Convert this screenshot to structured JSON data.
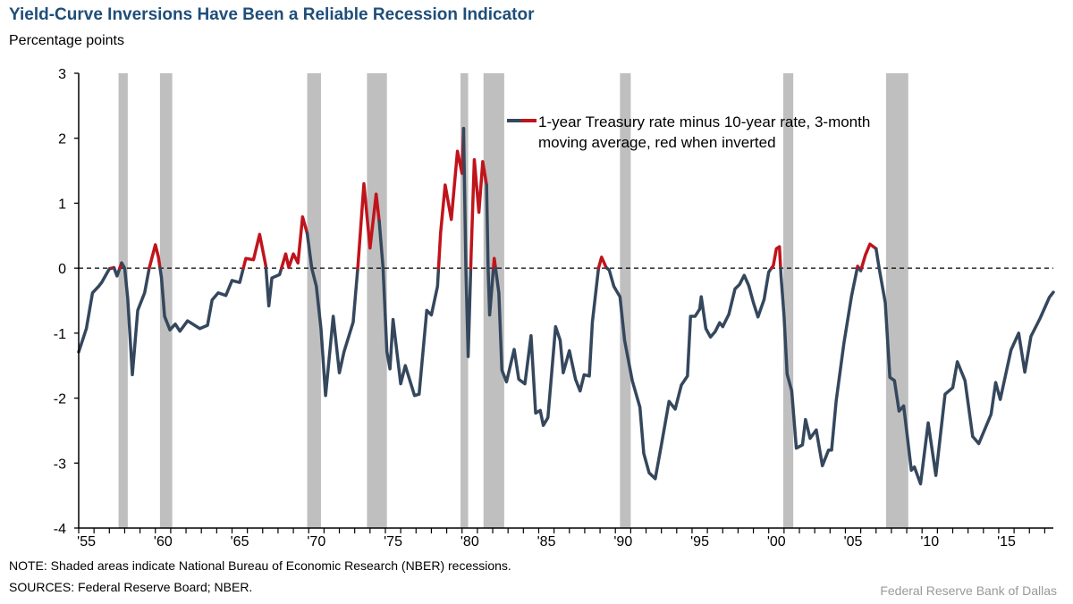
{
  "title": "Yield-Curve Inversions Have Been a Reliable Recession Indicator",
  "note": "NOTE: Shaded areas indicate National Bureau of Economic Research (NBER) recessions.",
  "sources": "SOURCES: Federal Reserve Board; NBER.",
  "credit": "Federal Reserve  Bank of Dallas",
  "colors": {
    "line": "#34475d",
    "inverted": "#c0141c",
    "recession": "#bfbfbf",
    "title": "#1f4e79"
  },
  "chart_data": {
    "type": "line",
    "title": "Yield-Curve Inversions Have Been a Reliable Recession Indicator",
    "ylabel": "Percentage points",
    "xlabel": "",
    "xlim": [
      1955,
      2018.56
    ],
    "ylim": [
      -4,
      3
    ],
    "yticks": [
      "3",
      "2",
      "1",
      "0",
      "-1",
      "-2",
      "-3",
      "-4"
    ],
    "ytick_values": [
      3,
      2,
      1,
      0,
      -1,
      -2,
      -3,
      -4
    ],
    "xticks": [
      "'55",
      "'60",
      "'65",
      "'70",
      "'75",
      "'80",
      "'85",
      "'90",
      "'95",
      "'00",
      "'05",
      "'10",
      "'15"
    ],
    "xtick_values": [
      1955,
      1960,
      1965,
      1970,
      1975,
      1980,
      1985,
      1990,
      1995,
      2000,
      2005,
      2010,
      2015
    ],
    "reference_line": 0,
    "grid": false,
    "legend": {
      "position": "top-center",
      "line1": "1-year Treasury rate minus 10-year rate, 3-month",
      "line2": "moving average, red when inverted"
    },
    "recessions": [
      [
        1957.6,
        1958.2
      ],
      [
        1960.3,
        1961.1
      ],
      [
        1969.9,
        1970.8
      ],
      [
        1973.8,
        1975.1
      ],
      [
        1979.9,
        1980.4
      ],
      [
        1981.4,
        1982.75
      ],
      [
        1990.3,
        1991.0
      ],
      [
        2000.95,
        2001.6
      ],
      [
        2007.65,
        2009.1
      ]
    ],
    "series": [
      {
        "x": [
          1955.0,
          1955.5,
          1955.9,
          1956.3,
          1956.5,
          1957.0,
          1957.3,
          1957.5,
          1957.8,
          1958.0,
          1958.2,
          1958.5,
          1958.85,
          1959.3,
          1959.6,
          1960.0,
          1960.2,
          1960.4,
          1960.6,
          1960.95,
          1961.3,
          1961.6,
          1962.1,
          1962.9,
          1963.4,
          1963.7,
          1964.1,
          1964.6,
          1965.0,
          1965.5,
          1965.9,
          1966.4,
          1966.8,
          1967.2,
          1967.4,
          1967.6,
          1968.1,
          1968.5,
          1968.7,
          1969.0,
          1969.3,
          1969.6,
          1969.9,
          1970.2,
          1970.5,
          1970.8,
          1971.1,
          1971.6,
          1972.0,
          1972.3,
          1972.9,
          1973.2,
          1973.6,
          1974.0,
          1974.4,
          1974.6,
          1974.85,
          1975.1,
          1975.3,
          1975.5,
          1976.0,
          1976.3,
          1976.9,
          1977.2,
          1977.7,
          1978.0,
          1978.4,
          1978.6,
          1978.9,
          1979.3,
          1979.7,
          1980.0,
          1980.1,
          1980.25,
          1980.4,
          1980.6,
          1980.8,
          1981.1,
          1981.35,
          1981.6,
          1981.7,
          1981.8,
          1982.1,
          1982.4,
          1982.6,
          1982.9,
          1983.4,
          1983.7,
          1984.1,
          1984.5,
          1984.8,
          1985.1,
          1985.3,
          1985.6,
          1986.1,
          1986.4,
          1986.6,
          1987.0,
          1987.4,
          1987.7,
          1987.96,
          1988.3,
          1988.5,
          1988.9,
          1989.1,
          1989.4,
          1989.6,
          1989.9,
          1990.3,
          1990.6,
          1991.1,
          1991.6,
          1991.85,
          1992.2,
          1992.6,
          1993.0,
          1993.5,
          1993.9,
          1994.3,
          1994.7,
          1994.9,
          1995.2,
          1995.5,
          1995.6,
          1995.9,
          1996.2,
          1996.5,
          1996.8,
          1997.0,
          1997.4,
          1997.8,
          1998.1,
          1998.4,
          1998.7,
          1999.0,
          1999.3,
          1999.7,
          2000.0,
          2000.3,
          2000.5,
          2000.7,
          2000.8,
          2001.0,
          2001.2,
          2001.5,
          2001.8,
          2002.2,
          2002.4,
          2002.7,
          2003.1,
          2003.5,
          2003.9,
          2004.1,
          2004.4,
          2004.9,
          2005.4,
          2005.8,
          2006.0,
          2006.3,
          2006.6,
          2007.0,
          2007.2,
          2007.6,
          2007.9,
          2008.2,
          2008.5,
          2008.8,
          2009.3,
          2009.5,
          2009.9,
          2010.4,
          2010.9,
          2011.5,
          2012.0,
          2012.3,
          2012.8,
          2013.3,
          2013.7,
          2014.5,
          2014.8,
          2015.1,
          2015.8,
          2016.3,
          2016.7,
          2017.1,
          2017.7,
          2018.3,
          2018.56
        ],
        "y": [
          -1.29,
          -0.93,
          -0.38,
          -0.28,
          -0.22,
          -0.01,
          0.01,
          -0.12,
          0.08,
          0.0,
          -0.47,
          -1.64,
          -0.65,
          -0.38,
          0.0,
          0.36,
          0.17,
          -0.15,
          -0.74,
          -0.95,
          -0.86,
          -0.97,
          -0.81,
          -0.93,
          -0.88,
          -0.49,
          -0.38,
          -0.42,
          -0.19,
          -0.22,
          0.15,
          0.13,
          0.52,
          0.04,
          -0.58,
          -0.15,
          -0.1,
          0.22,
          0.01,
          0.22,
          0.08,
          0.79,
          0.54,
          0.0,
          -0.28,
          -0.93,
          -1.96,
          -0.74,
          -1.61,
          -1.29,
          -0.83,
          0.0,
          1.3,
          0.31,
          1.14,
          0.72,
          0.0,
          -1.29,
          -1.55,
          -0.79,
          -1.78,
          -1.5,
          -1.96,
          -1.94,
          -0.65,
          -0.72,
          -0.28,
          0.54,
          1.28,
          0.75,
          1.8,
          1.46,
          2.15,
          0.0,
          -1.36,
          0.27,
          1.67,
          0.86,
          1.64,
          1.28,
          0.0,
          -0.72,
          0.15,
          -0.38,
          -1.57,
          -1.75,
          -1.25,
          -1.71,
          -1.78,
          -1.04,
          -2.23,
          -2.19,
          -2.42,
          -2.3,
          -0.9,
          -1.11,
          -1.61,
          -1.27,
          -1.71,
          -1.89,
          -1.64,
          -1.66,
          -0.83,
          0.0,
          0.17,
          0.01,
          -0.03,
          -0.28,
          -0.44,
          -1.11,
          -1.73,
          -2.14,
          -2.85,
          -3.15,
          -3.24,
          -2.72,
          -2.05,
          -2.17,
          -1.8,
          -1.66,
          -0.74,
          -0.74,
          -0.63,
          -0.44,
          -0.93,
          -1.06,
          -0.98,
          -0.84,
          -0.9,
          -0.71,
          -0.32,
          -0.25,
          -0.11,
          -0.27,
          -0.53,
          -0.75,
          -0.48,
          -0.06,
          0.04,
          0.3,
          0.33,
          -0.11,
          -0.74,
          -1.63,
          -1.89,
          -2.77,
          -2.72,
          -2.33,
          -2.62,
          -2.49,
          -3.04,
          -2.8,
          -2.8,
          -2.04,
          -1.16,
          -0.43,
          0.03,
          -0.04,
          0.2,
          0.37,
          0.3,
          0.0,
          -0.53,
          -1.68,
          -1.73,
          -2.2,
          -2.12,
          -3.11,
          -3.06,
          -3.32,
          -2.38,
          -3.19,
          -1.94,
          -1.84,
          -1.44,
          -1.73,
          -2.59,
          -2.7,
          -2.25,
          -1.76,
          -2.02,
          -1.26,
          -1.0,
          -1.6,
          -1.05,
          -0.77,
          -0.45,
          -0.37
        ]
      }
    ]
  }
}
